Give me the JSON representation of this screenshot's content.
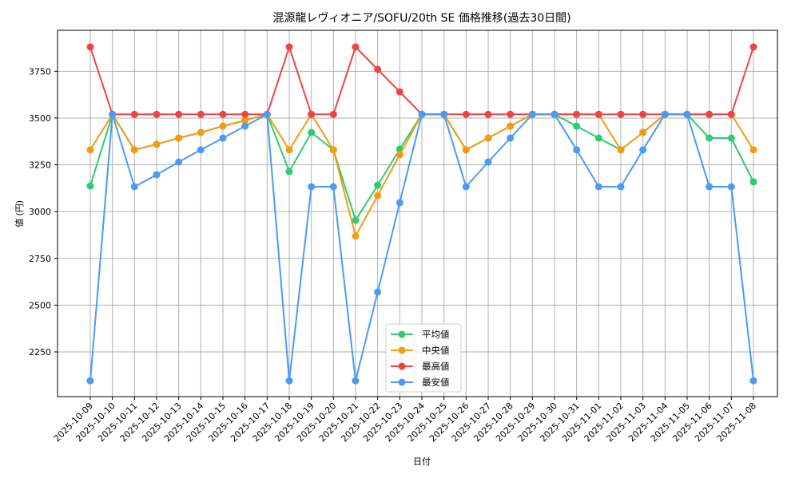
{
  "chart_data": {
    "type": "line",
    "title": "混源龍レヴィオニア/SOFU/20th SE 価格推移(過去30日間)",
    "xlabel": "日付",
    "ylabel": "値 (円)",
    "ylim": [
      2011,
      3969
    ],
    "yticks": [
      2250,
      2500,
      2750,
      3000,
      3250,
      3500,
      3750
    ],
    "grid": true,
    "legend_position": "lower center",
    "x": [
      "2025-10-09",
      "2025-10-10",
      "2025-10-11",
      "2025-10-12",
      "2025-10-13",
      "2025-10-14",
      "2025-10-15",
      "2025-10-16",
      "2025-10-17",
      "2025-10-18",
      "2025-10-19",
      "2025-10-20",
      "2025-10-21",
      "2025-10-22",
      "2025-10-23",
      "2025-10-24",
      "2025-10-25",
      "2025-10-26",
      "2025-10-27",
      "2025-10-28",
      "2025-10-29",
      "2025-10-30",
      "2025-10-31",
      "2025-11-01",
      "2025-11-02",
      "2025-11-03",
      "2025-11-04",
      "2025-11-05",
      "2025-11-06",
      "2025-11-07",
      "2025-11-08"
    ],
    "series": [
      {
        "name": "平均値",
        "color": "#2ecc71",
        "values": [
          3137,
          3520,
          3330,
          3360,
          3393,
          3423,
          3457,
          3487,
          3520,
          3214,
          3423,
          3330,
          2954,
          3141,
          3334,
          3520,
          3520,
          3330,
          3393,
          3457,
          3520,
          3520,
          3457,
          3393,
          3330,
          3423,
          3520,
          3520,
          3393,
          3393,
          3159
        ]
      },
      {
        "name": "中央値",
        "color": "#f39c12",
        "values": [
          3330,
          3520,
          3330,
          3360,
          3393,
          3423,
          3457,
          3487,
          3520,
          3330,
          3520,
          3330,
          2869,
          3086,
          3304,
          3520,
          3520,
          3330,
          3393,
          3457,
          3520,
          3520,
          3520,
          3520,
          3330,
          3423,
          3520,
          3520,
          3520,
          3520,
          3330
        ]
      },
      {
        "name": "最高値",
        "color": "#ef4444",
        "values": [
          3880,
          3520,
          3520,
          3520,
          3520,
          3520,
          3520,
          3520,
          3520,
          3880,
          3520,
          3520,
          3880,
          3760,
          3640,
          3520,
          3520,
          3520,
          3520,
          3520,
          3520,
          3520,
          3520,
          3520,
          3520,
          3520,
          3520,
          3520,
          3520,
          3520,
          3880
        ]
      },
      {
        "name": "最安値",
        "color": "#4b9bf5",
        "values": [
          2096,
          3520,
          3133,
          3197,
          3265,
          3330,
          3393,
          3457,
          3520,
          2096,
          3133,
          3133,
          2096,
          2570,
          3048,
          3520,
          3520,
          3133,
          3265,
          3393,
          3520,
          3520,
          3330,
          3133,
          3133,
          3330,
          3520,
          3520,
          3133,
          3133,
          2096
        ]
      }
    ]
  }
}
